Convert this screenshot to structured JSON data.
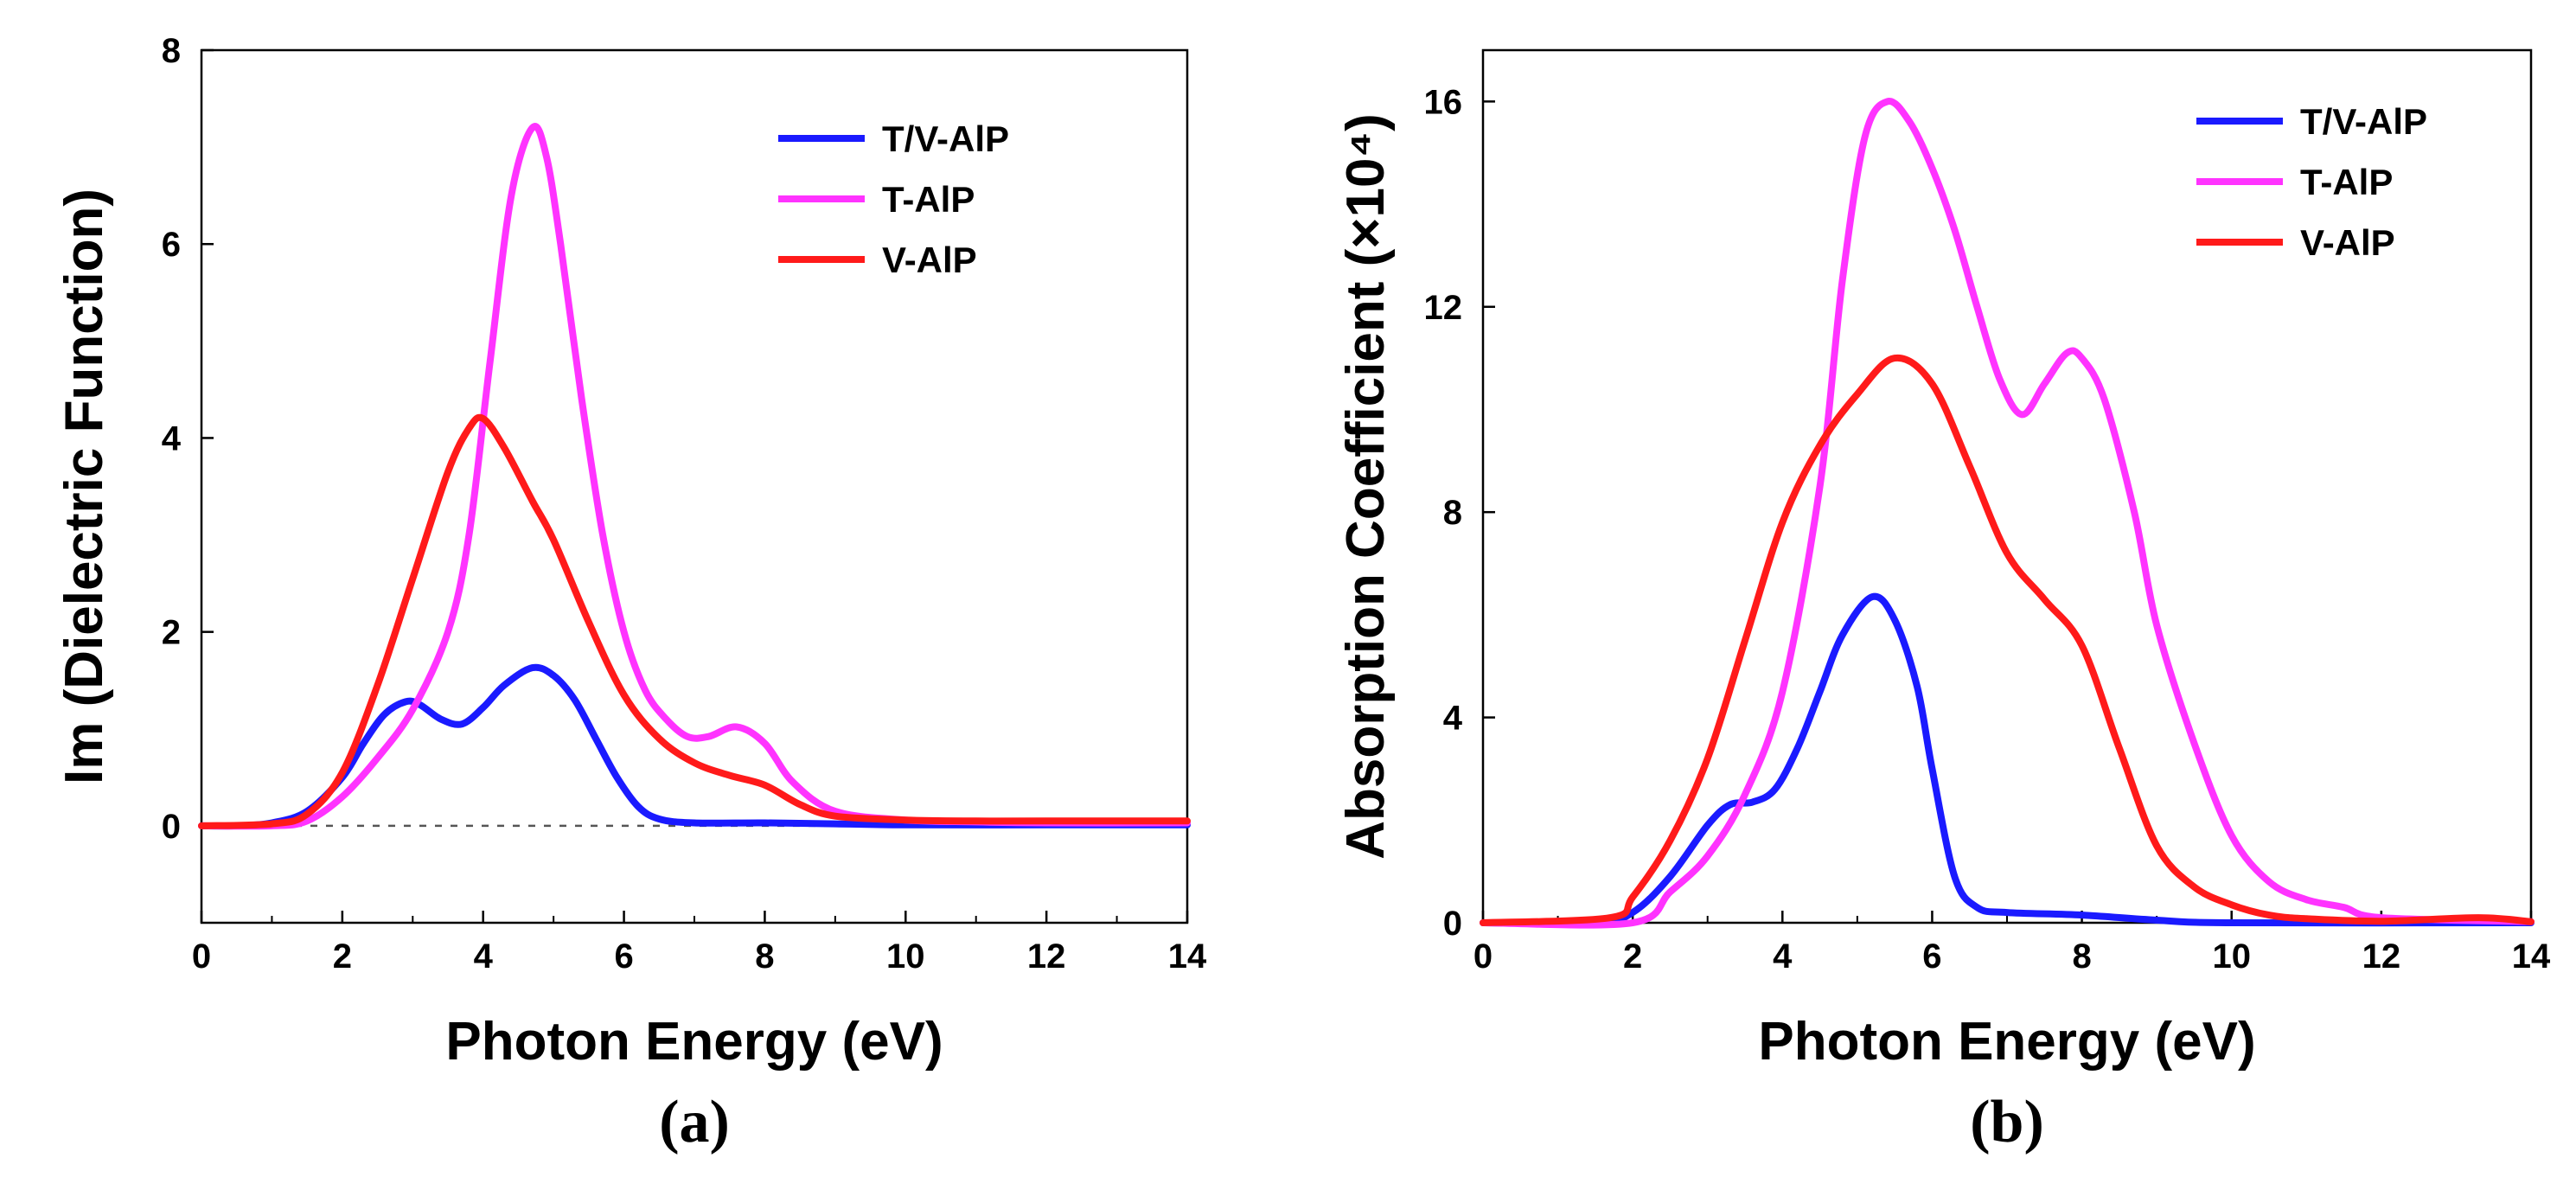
{
  "chart_data": [
    {
      "type": "line",
      "panel_label": "(a)",
      "xlabel": "Photon Energy (eV)",
      "ylabel": "Im (Dielectric Function)",
      "xlim": [
        0,
        14
      ],
      "ylim": [
        -1,
        8
      ],
      "xticks": [
        "0",
        "2",
        "4",
        "6",
        "8",
        "10",
        "12",
        "14"
      ],
      "yticks": [
        "0",
        "2",
        "4",
        "6",
        "8"
      ],
      "zero_line": "dashed",
      "legend_position": "top-right",
      "series": [
        {
          "name": "T/V-AlP",
          "color": "#1a1aff",
          "x": [
            0,
            0.5,
            1.0,
            1.5,
            2.0,
            2.3,
            2.6,
            2.9,
            3.1,
            3.4,
            3.7,
            4.0,
            4.3,
            4.7,
            5.0,
            5.3,
            5.6,
            5.9,
            6.2,
            6.5,
            7.0,
            8.0,
            9.0,
            10.0,
            12.0,
            14.0
          ],
          "values": [
            0,
            0,
            0.03,
            0.15,
            0.5,
            0.85,
            1.15,
            1.28,
            1.25,
            1.1,
            1.05,
            1.22,
            1.45,
            1.63,
            1.55,
            1.3,
            0.9,
            0.5,
            0.2,
            0.07,
            0.03,
            0.03,
            0.02,
            0.01,
            0.01,
            0.01
          ]
        },
        {
          "name": "T-AlP",
          "color": "#ff33ff",
          "x": [
            0,
            1.0,
            1.5,
            2.0,
            2.5,
            3.0,
            3.5,
            3.8,
            4.1,
            4.4,
            4.7,
            4.9,
            5.1,
            5.4,
            5.7,
            6.0,
            6.3,
            6.6,
            6.9,
            7.2,
            7.6,
            8.0,
            8.4,
            9.0,
            10.0,
            11.0,
            12.0,
            14.0
          ],
          "values": [
            0,
            0,
            0.05,
            0.3,
            0.7,
            1.2,
            2.0,
            3.0,
            4.8,
            6.5,
            7.2,
            6.9,
            6.0,
            4.4,
            3.0,
            2.0,
            1.4,
            1.1,
            0.92,
            0.92,
            1.02,
            0.85,
            0.45,
            0.15,
            0.06,
            0.04,
            0.03,
            0.03
          ]
        },
        {
          "name": "V-AlP",
          "color": "#ff1a1a",
          "x": [
            0,
            1.0,
            1.5,
            2.0,
            2.5,
            3.0,
            3.5,
            3.8,
            4.0,
            4.3,
            4.7,
            5.0,
            5.5,
            6.0,
            6.5,
            7.0,
            7.5,
            8.0,
            8.5,
            9.0,
            10.0,
            11.0,
            12.0,
            14.0
          ],
          "values": [
            0,
            0.02,
            0.12,
            0.55,
            1.45,
            2.55,
            3.65,
            4.1,
            4.2,
            3.9,
            3.35,
            2.95,
            2.1,
            1.35,
            0.9,
            0.65,
            0.52,
            0.42,
            0.22,
            0.1,
            0.06,
            0.05,
            0.05,
            0.05
          ]
        }
      ]
    },
    {
      "type": "line",
      "panel_label": "(b)",
      "xlabel": "Photon Energy (eV)",
      "ylabel": "Absorption Coefficient (×10⁴)",
      "xlim": [
        0,
        14
      ],
      "ylim": [
        0,
        17
      ],
      "xticks": [
        "0",
        "2",
        "4",
        "6",
        "8",
        "10",
        "12",
        "14"
      ],
      "yticks": [
        "0",
        "4",
        "8",
        "12",
        "16"
      ],
      "legend_position": "top-right",
      "series": [
        {
          "name": "T/V-AlP",
          "color": "#1a1aff",
          "x": [
            0,
            1.5,
            2.0,
            2.5,
            3.0,
            3.3,
            3.6,
            3.9,
            4.2,
            4.5,
            4.8,
            5.2,
            5.5,
            5.8,
            6.0,
            6.3,
            6.6,
            7.0,
            8.0,
            9.0,
            10.0,
            14.0
          ],
          "values": [
            0,
            0,
            0.2,
            0.9,
            1.9,
            2.3,
            2.35,
            2.6,
            3.4,
            4.5,
            5.6,
            6.35,
            5.9,
            4.6,
            3.0,
            0.9,
            0.3,
            0.2,
            0.15,
            0.05,
            0,
            0
          ]
        },
        {
          "name": "T-AlP",
          "color": "#ff33ff",
          "x": [
            0,
            2.0,
            2.5,
            3.0,
            3.5,
            4.0,
            4.5,
            4.8,
            5.1,
            5.4,
            5.7,
            6.0,
            6.3,
            6.6,
            6.9,
            7.2,
            7.5,
            7.8,
            8.0,
            8.3,
            8.7,
            9.0,
            9.5,
            10.0,
            10.5,
            11.0,
            11.5,
            12.0,
            14.0
          ],
          "values": [
            0,
            0,
            0.6,
            1.3,
            2.5,
            4.5,
            8.5,
            12.5,
            15.3,
            16.0,
            15.6,
            14.7,
            13.5,
            12.0,
            10.6,
            9.9,
            10.5,
            11.1,
            11.0,
            10.2,
            8.0,
            5.8,
            3.5,
            1.7,
            0.8,
            0.45,
            0.3,
            0.1,
            0.02
          ]
        },
        {
          "name": "V-AlP",
          "color": "#ff1a1a",
          "x": [
            0,
            1.7,
            2.0,
            2.5,
            3.0,
            3.5,
            4.0,
            4.5,
            5.0,
            5.5,
            6.0,
            6.5,
            7.0,
            7.5,
            8.0,
            8.5,
            9.0,
            9.5,
            10.0,
            10.5,
            11.0,
            12.0,
            13.3,
            14.0
          ],
          "values": [
            0,
            0.1,
            0.5,
            1.6,
            3.2,
            5.5,
            7.8,
            9.3,
            10.3,
            11.0,
            10.5,
            8.9,
            7.2,
            6.3,
            5.4,
            3.4,
            1.5,
            0.7,
            0.35,
            0.15,
            0.08,
            0.03,
            0.1,
            0.02
          ]
        }
      ]
    }
  ]
}
